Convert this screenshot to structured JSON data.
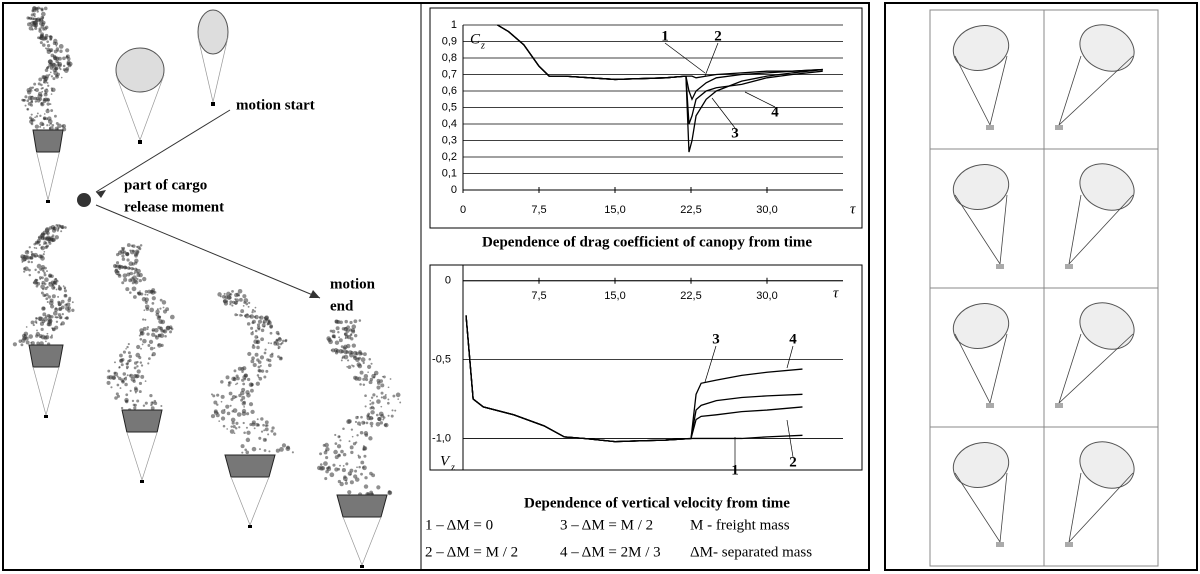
{
  "annotations": {
    "motion_start": "motion start",
    "release_1": "part of cargo",
    "release_2": "release moment",
    "motion_end_1": "motion",
    "motion_end_2": "end"
  },
  "chart_data": [
    {
      "type": "line",
      "title": "Dependence of drag coefficient of canopy from time",
      "y_label": "C",
      "y_label_sub": "z",
      "x_label": "τ",
      "x": [
        3.4,
        4.5,
        6,
        7.5,
        8.5,
        10,
        15,
        20,
        22,
        22.3,
        22.6,
        23,
        24,
        25,
        27.5,
        30,
        32.5,
        35.5
      ],
      "series": [
        {
          "name": "1",
          "color": "#000000",
          "values": [
            1.0,
            0.96,
            0.88,
            0.75,
            0.69,
            0.69,
            0.67,
            0.68,
            0.69,
            0.69,
            0.69,
            0.68,
            0.69,
            0.7,
            0.71,
            0.72,
            0.72,
            0.73
          ]
        },
        {
          "name": "2",
          "color": "#000000",
          "values": [
            1.0,
            0.96,
            0.88,
            0.75,
            0.69,
            0.69,
            0.67,
            0.68,
            0.69,
            0.6,
            0.55,
            0.6,
            0.65,
            0.68,
            0.7,
            0.71,
            0.72,
            0.73
          ]
        },
        {
          "name": "3",
          "color": "#000000",
          "values": [
            1.0,
            0.96,
            0.88,
            0.75,
            0.69,
            0.69,
            0.67,
            0.68,
            0.69,
            0.23,
            0.3,
            0.45,
            0.55,
            0.6,
            0.66,
            0.69,
            0.71,
            0.73
          ]
        },
        {
          "name": "4",
          "color": "#000000",
          "values": [
            1.0,
            0.96,
            0.88,
            0.75,
            0.69,
            0.69,
            0.67,
            0.68,
            0.69,
            0.4,
            0.45,
            0.55,
            0.6,
            0.62,
            0.64,
            0.68,
            0.7,
            0.72
          ]
        }
      ],
      "xlim": [
        0,
        37.5
      ],
      "ylim": [
        0,
        1
      ],
      "xticks": [
        0,
        {
          "value": 7.5,
          "label": "7,5"
        },
        {
          "value": 15,
          "label": "15,0"
        },
        {
          "value": 22.5,
          "label": "22,5"
        },
        {
          "value": 30,
          "label": "30,0"
        }
      ],
      "yticks": [
        0,
        {
          "value": 0.1,
          "label": "0,1"
        },
        {
          "value": 0.2,
          "label": "0,2"
        },
        {
          "value": 0.3,
          "label": "0,3"
        },
        {
          "value": 0.4,
          "label": "0,4"
        },
        {
          "value": 0.5,
          "label": "0,5"
        },
        {
          "value": 0.6,
          "label": "0,6"
        },
        {
          "value": 0.7,
          "label": "0,7"
        },
        {
          "value": 0.8,
          "label": "0,8"
        },
        {
          "value": 0.9,
          "label": "0,9"
        },
        1
      ],
      "grid": true
    },
    {
      "type": "line",
      "title": "Dependence of vertical velocity from time",
      "y_label": "V",
      "y_label_sub": "z",
      "x_label": "τ",
      "x": [
        0.3,
        1,
        2,
        5,
        8,
        10,
        12,
        15,
        20,
        22.5,
        23,
        23.5,
        25,
        27.5,
        30,
        33.5
      ],
      "series": [
        {
          "name": "1",
          "color": "#000000",
          "values": [
            -0.22,
            -0.75,
            -0.8,
            -0.85,
            -0.92,
            -0.99,
            -1.0,
            -1.02,
            -1.01,
            -1.0,
            -1.0,
            -1.0,
            -1.0,
            -1.0,
            -0.99,
            -0.98
          ]
        },
        {
          "name": "2",
          "color": "#000000",
          "values": [
            -0.22,
            -0.75,
            -0.8,
            -0.85,
            -0.92,
            -0.99,
            -1.0,
            -1.02,
            -1.01,
            -1.0,
            -0.88,
            -0.86,
            -0.85,
            -0.83,
            -0.82,
            -0.8
          ]
        },
        {
          "name": "3",
          "color": "#000000",
          "values": [
            -0.22,
            -0.75,
            -0.8,
            -0.85,
            -0.92,
            -0.99,
            -1.0,
            -1.02,
            -1.01,
            -1.0,
            -0.82,
            -0.79,
            -0.76,
            -0.74,
            -0.73,
            -0.72
          ]
        },
        {
          "name": "4",
          "color": "#000000",
          "values": [
            -0.22,
            -0.75,
            -0.8,
            -0.85,
            -0.92,
            -0.99,
            -1.0,
            -1.02,
            -1.01,
            -1.0,
            -0.72,
            -0.65,
            -0.63,
            -0.6,
            -0.58,
            -0.56
          ]
        }
      ],
      "xlim": [
        0,
        37.5
      ],
      "ylim": [
        -1.2,
        0.1
      ],
      "xticks": [
        {
          "value": 7.5,
          "label": "7,5"
        },
        {
          "value": 15,
          "label": "15,0"
        },
        {
          "value": 22.5,
          "label": "22,5"
        },
        {
          "value": 30,
          "label": "30,0"
        }
      ],
      "yticks": [
        0,
        {
          "value": -0.5,
          "label": "-0,5"
        },
        {
          "value": -1.0,
          "label": "-1,0"
        }
      ],
      "grid": true
    }
  ],
  "legend": {
    "row1": [
      "1 – ΔM = 0",
      "3 – ΔM = M / 2",
      "M - freight mass"
    ],
    "row2": [
      "2 – ΔM = M / 2",
      "4 – ΔM = 2M / 3",
      "ΔM- separated mass"
    ]
  }
}
